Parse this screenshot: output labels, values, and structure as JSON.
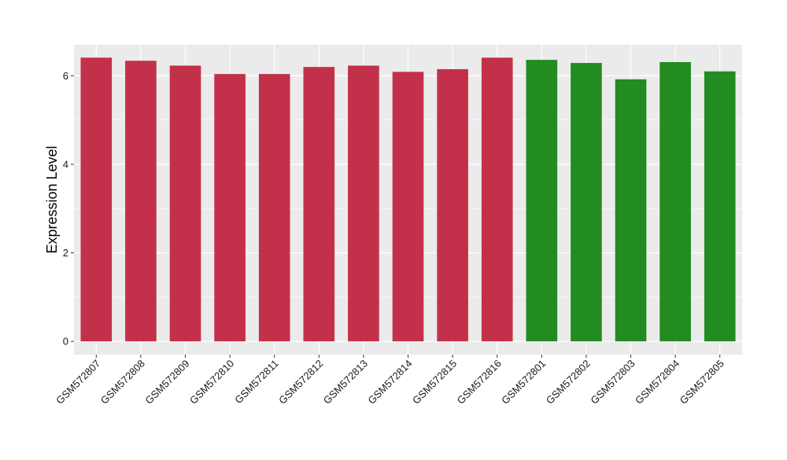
{
  "chart_data": {
    "type": "bar",
    "title": "",
    "xlabel": "",
    "ylabel": "Expression Level",
    "ylim": [
      -0.3,
      6.7
    ],
    "yticks": [
      0,
      2,
      4,
      6
    ],
    "ytick_labels": [
      "0",
      "2",
      "4",
      "6"
    ],
    "grid": true,
    "legend": "none",
    "panel_background": "#ebebeb",
    "grid_color": "#ffffff",
    "categories": [
      "GSM572807",
      "GSM572808",
      "GSM572809",
      "GSM572810",
      "GSM572811",
      "GSM572812",
      "GSM572813",
      "GSM572814",
      "GSM572815",
      "GSM572816",
      "GSM572801",
      "GSM572802",
      "GSM572803",
      "GSM572804",
      "GSM572805"
    ],
    "values": [
      6.41,
      6.34,
      6.23,
      6.04,
      6.04,
      6.2,
      6.23,
      6.09,
      6.15,
      6.41,
      6.36,
      6.29,
      5.92,
      6.31,
      6.1
    ],
    "bar_colors": [
      "#c3304a",
      "#c3304a",
      "#c3304a",
      "#c3304a",
      "#c3304a",
      "#c3304a",
      "#c3304a",
      "#c3304a",
      "#c3304a",
      "#c3304a",
      "#228b22",
      "#228b22",
      "#228b22",
      "#228b22",
      "#228b22"
    ]
  }
}
